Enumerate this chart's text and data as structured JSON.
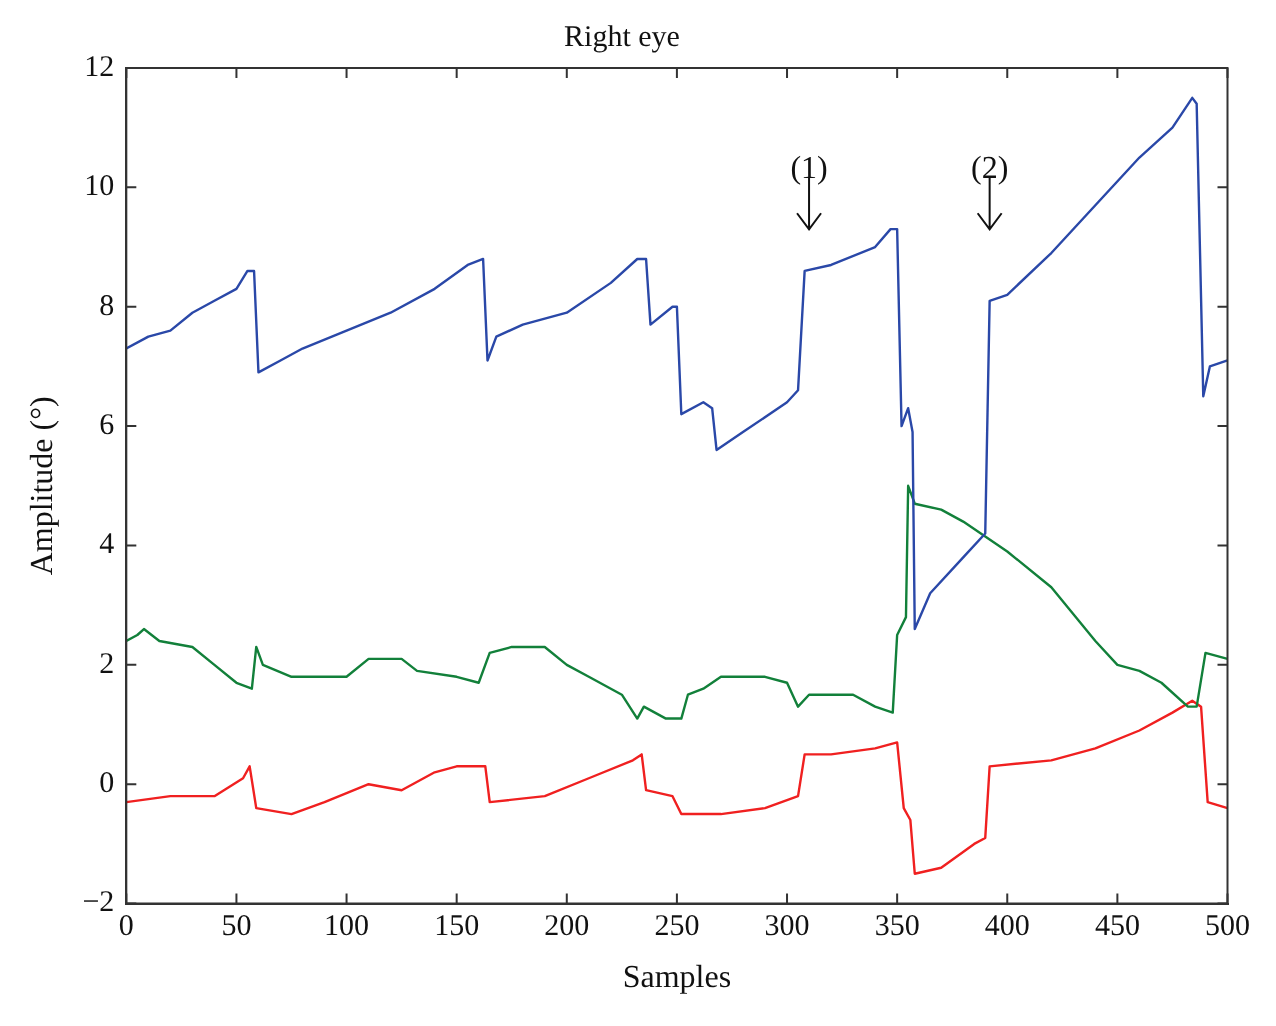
{
  "chart_data": {
    "type": "line",
    "title": "Right eye",
    "xlabel": "Samples",
    "ylabel": "Amplitude (°)",
    "xlim": [
      0,
      500
    ],
    "xticks": [
      0,
      50,
      100,
      150,
      200,
      250,
      300,
      350,
      400,
      450,
      500
    ],
    "ylim": [
      -2,
      12
    ],
    "yticks": [
      -2,
      0,
      2,
      4,
      6,
      8,
      10,
      12
    ],
    "grid": false,
    "legend": false,
    "marker": "none",
    "line_style": "solid",
    "annotations": [
      "(1)",
      "(2)"
    ],
    "series": [
      {
        "color": "#2a48a8",
        "x": [
          0,
          10,
          20,
          30,
          40,
          50,
          55,
          58,
          60,
          70,
          80,
          100,
          120,
          140,
          155,
          162,
          164,
          168,
          180,
          200,
          220,
          232,
          236,
          238,
          248,
          250,
          252,
          262,
          266,
          268,
          280,
          300,
          305,
          308,
          320,
          340,
          347,
          350,
          352,
          355,
          357,
          358,
          365,
          380,
          390,
          392,
          400,
          420,
          440,
          460,
          475,
          484,
          486,
          489,
          492,
          500
        ],
        "values": [
          7.3,
          7.5,
          7.6,
          7.9,
          8.1,
          8.3,
          8.6,
          8.6,
          6.9,
          7.1,
          7.3,
          7.6,
          7.9,
          8.3,
          8.7,
          8.8,
          7.1,
          7.5,
          7.7,
          7.9,
          8.4,
          8.8,
          8.8,
          7.7,
          8.0,
          8.0,
          6.2,
          6.4,
          6.3,
          5.6,
          5.9,
          6.4,
          6.6,
          8.6,
          8.7,
          9.0,
          9.3,
          9.3,
          6.0,
          6.3,
          5.9,
          2.6,
          3.2,
          3.8,
          4.2,
          8.1,
          8.2,
          8.9,
          9.7,
          10.5,
          11.0,
          11.5,
          11.4,
          6.5,
          7.0,
          7.1
        ]
      },
      {
        "color": "#12803a",
        "x": [
          0,
          5,
          8,
          15,
          30,
          40,
          50,
          57,
          59,
          62,
          75,
          100,
          110,
          125,
          132,
          150,
          160,
          165,
          175,
          190,
          200,
          210,
          225,
          232,
          235,
          245,
          252,
          255,
          262,
          270,
          290,
          300,
          305,
          310,
          330,
          340,
          348,
          350,
          354,
          355,
          358,
          370,
          380,
          400,
          420,
          440,
          450,
          460,
          470,
          482,
          486,
          490,
          500
        ],
        "values": [
          2.4,
          2.5,
          2.6,
          2.4,
          2.3,
          2.0,
          1.7,
          1.6,
          2.3,
          2.0,
          1.8,
          1.8,
          2.1,
          2.1,
          1.9,
          1.8,
          1.7,
          2.2,
          2.3,
          2.3,
          2.0,
          1.8,
          1.5,
          1.1,
          1.3,
          1.1,
          1.1,
          1.5,
          1.6,
          1.8,
          1.8,
          1.7,
          1.3,
          1.5,
          1.5,
          1.3,
          1.2,
          2.5,
          2.8,
          5.0,
          4.7,
          4.6,
          4.4,
          3.9,
          3.3,
          2.4,
          2.0,
          1.9,
          1.7,
          1.3,
          1.3,
          2.2,
          2.1
        ]
      },
      {
        "color": "#f02020",
        "x": [
          0,
          20,
          40,
          53,
          56,
          59,
          75,
          90,
          110,
          125,
          140,
          150,
          163,
          165,
          190,
          210,
          230,
          234,
          236,
          248,
          252,
          270,
          290,
          305,
          308,
          320,
          340,
          350,
          353,
          356,
          358,
          370,
          385,
          390,
          392,
          420,
          440,
          460,
          475,
          484,
          488,
          491,
          500
        ],
        "values": [
          -0.3,
          -0.2,
          -0.2,
          0.1,
          0.3,
          -0.4,
          -0.5,
          -0.3,
          0.0,
          -0.1,
          0.2,
          0.3,
          0.3,
          -0.3,
          -0.2,
          0.1,
          0.4,
          0.5,
          -0.1,
          -0.2,
          -0.5,
          -0.5,
          -0.4,
          -0.2,
          0.5,
          0.5,
          0.6,
          0.7,
          -0.4,
          -0.6,
          -1.5,
          -1.4,
          -1.0,
          -0.9,
          0.3,
          0.4,
          0.6,
          0.9,
          1.2,
          1.4,
          1.3,
          -0.3,
          -0.4
        ]
      }
    ]
  }
}
